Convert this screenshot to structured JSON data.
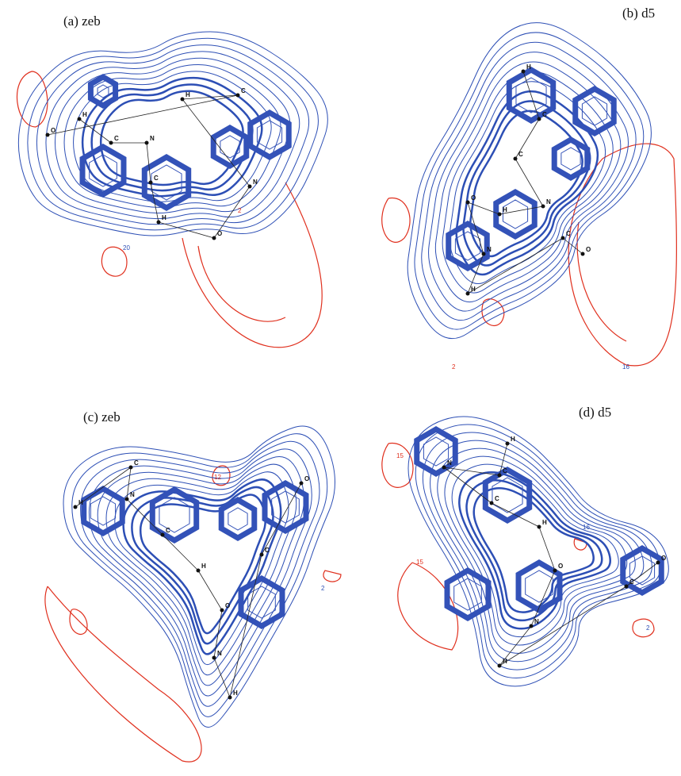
{
  "panels": [
    {
      "label": "(a) zeb",
      "atoms": [
        "H",
        "C",
        "N",
        "C",
        "H",
        "O",
        "N",
        "H",
        "C",
        "O"
      ],
      "contour_labels": [
        "2",
        "20"
      ]
    },
    {
      "label": "(b) d5",
      "atoms": [
        "H",
        "C",
        "C",
        "N",
        "H",
        "O",
        "N",
        "H",
        "C",
        "O"
      ],
      "contour_labels": [
        "2",
        "16"
      ]
    },
    {
      "label": "(c) zeb",
      "atoms": [
        "H",
        "C",
        "N",
        "C",
        "H",
        "O",
        "N",
        "H",
        "C",
        "O"
      ],
      "contour_labels": [
        "12",
        "2"
      ]
    },
    {
      "label": "(d) d5",
      "atoms": [
        "H",
        "C",
        "N",
        "C",
        "H",
        "O",
        "N",
        "H",
        "C",
        "O"
      ],
      "contour_labels": [
        "15",
        "16",
        "15",
        "2"
      ]
    }
  ]
}
